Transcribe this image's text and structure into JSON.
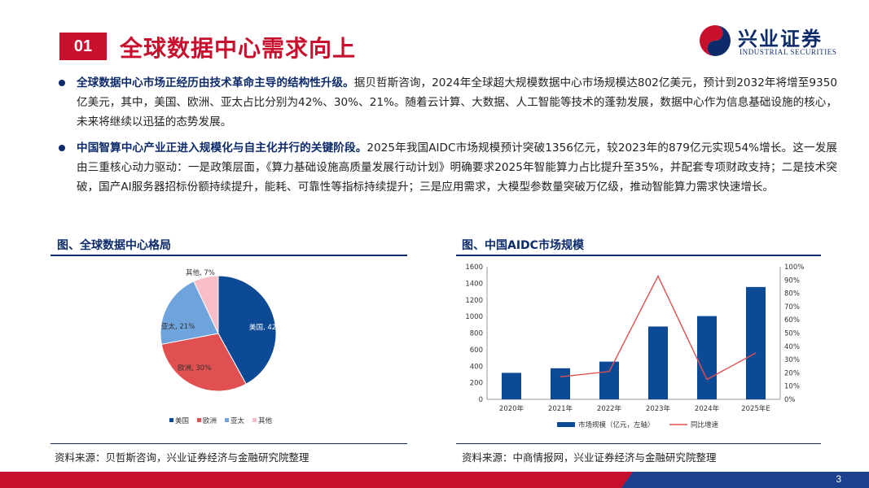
{
  "header": {
    "section_number": "01",
    "title": "全球数据中心需求向上",
    "logo_cn": "兴业证券",
    "logo_en": "INDUSTRIAL SECURITIES"
  },
  "bullets": [
    {
      "lead": "全球数据中心市场正经历由技术革命主导的结构性升级。",
      "text": "据贝哲斯咨询，2024年全球超大规模数据中心市场规模达802亿美元，预计到2032年将增至9350亿美元，其中，美国、欧洲、亚太占比分别为42%、30%、21%。随着云计算、大数据、人工智能等技术的蓬勃发展，数据中心作为信息基础设施的核心，未来将继续以迅猛的态势发展。"
    },
    {
      "lead": "中国智算中心产业正进入规模化与自主化并行的关键阶段。",
      "text": "2025年我国AIDC市场规模预计突破1356亿元，较2023年的879亿元实现54%增长。这一发展由三重核心动力驱动：一是政策层面，《算力基础设施高质量发展行动计划》明确要求2025年智能算力占比提升至35%，并配套专项财政支持；二是技术突破，国产AI服务器招标份额持续提升，能耗、可靠性等指标持续提升；三是应用需求，大模型参数量突破万亿级，推动智能算力需求快速增长。"
    }
  ],
  "left_panel": {
    "title": "图、全球数据中心格局",
    "source": "资料来源：贝哲斯咨询，兴业证券经济与金融研究院整理"
  },
  "right_panel": {
    "title": "图、中国AIDC市场规模",
    "source": "资料来源：中商情报网，兴业证券经济与金融研究院整理"
  },
  "footer": {
    "page": "3"
  },
  "chart_data": [
    {
      "type": "pie",
      "title": "",
      "slices": [
        {
          "label": "美国",
          "value": 42,
          "data_label": "美国, 42%",
          "color": "#0d4a96"
        },
        {
          "label": "欧洲",
          "value": 30,
          "data_label": "欧洲, 30%",
          "color": "#e05050"
        },
        {
          "label": "亚太",
          "value": 21,
          "data_label": "亚太, 21%",
          "color": "#6fa3dc"
        },
        {
          "label": "其他",
          "value": 7,
          "data_label": "其他, 7%",
          "color": "#f8bfc8"
        }
      ],
      "legend": [
        "美国",
        "欧洲",
        "亚太",
        "其他"
      ],
      "legend_position": "bottom"
    },
    {
      "type": "bar",
      "title": "",
      "categories": [
        "2020年",
        "2021年",
        "2022年",
        "2023年",
        "2024年",
        "2025年E"
      ],
      "series": [
        {
          "name": "市场规模（亿元，左轴）",
          "kind": "bar",
          "axis": "left",
          "color": "#0d4a96",
          "values": [
            320,
            375,
            455,
            879,
            1005,
            1356
          ]
        },
        {
          "name": "同比增速",
          "kind": "line",
          "axis": "right",
          "color": "#e05050",
          "values": [
            null,
            0.17,
            0.21,
            0.93,
            0.15,
            0.35
          ]
        }
      ],
      "y_left": {
        "min": 0,
        "max": 1600,
        "ticks": [
          "0",
          "200",
          "400",
          "600",
          "800",
          "1000",
          "1200",
          "1400",
          "1600"
        ]
      },
      "y_right": {
        "min": 0,
        "max": 1,
        "ticks": [
          "0%",
          "10%",
          "20%",
          "30%",
          "40%",
          "50%",
          "60%",
          "70%",
          "80%",
          "90%",
          "100%"
        ]
      },
      "grid": false,
      "legend_position": "bottom"
    }
  ]
}
